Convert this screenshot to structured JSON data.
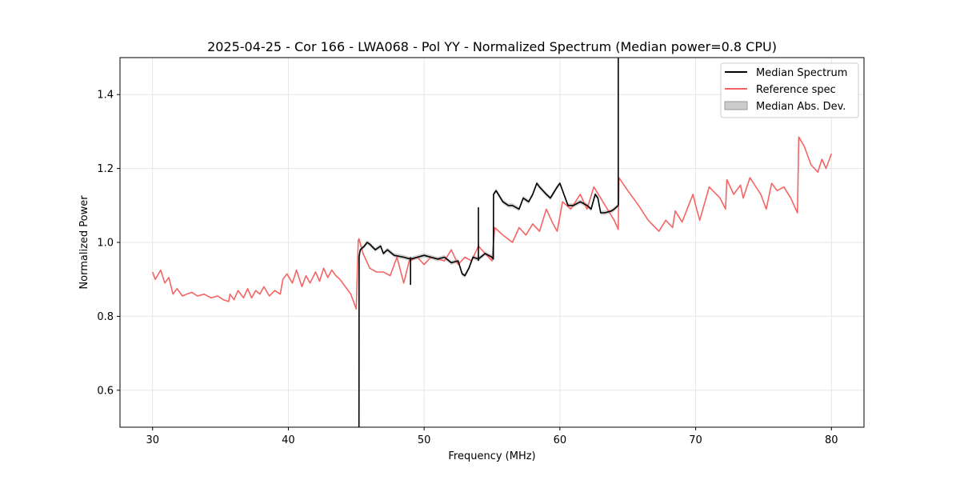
{
  "chart_data": {
    "type": "line",
    "title": "2025-04-25 - Cor 166 - LWA068 - Pol YY - Normalized Spectrum (Median power=0.8 CPU)",
    "xlabel": "Frequency (MHz)",
    "ylabel": "Normalized Power",
    "xlim": [
      27.6,
      82.4
    ],
    "ylim": [
      0.5,
      1.5
    ],
    "xticks": [
      30,
      40,
      50,
      60,
      70,
      80
    ],
    "yticks": [
      0.6,
      0.8,
      1.0,
      1.2,
      1.4
    ],
    "xtick_labels": [
      "30",
      "40",
      "50",
      "60",
      "70",
      "80"
    ],
    "ytick_labels": [
      "0.6",
      "0.8",
      "1.0",
      "1.2",
      "1.4"
    ],
    "grid": true,
    "legend_position": "top-right",
    "series": [
      {
        "name": "Median Spectrum",
        "color": "#000000",
        "x": [
          45.2,
          45.21,
          45.25,
          45.3,
          45.6,
          45.8,
          46.0,
          46.4,
          46.8,
          47.0,
          47.3,
          47.8,
          48.5,
          49.0,
          49.5,
          50.0,
          50.5,
          51.0,
          51.5,
          52.0,
          52.5,
          52.8,
          53.0,
          53.3,
          53.6,
          54.0,
          54.5,
          55.0,
          55.1,
          55.11,
          55.3,
          55.8,
          56.2,
          56.5,
          57.0,
          57.3,
          57.7,
          58.0,
          58.3,
          58.5,
          59.0,
          59.3,
          59.8,
          60.0,
          60.3,
          60.6,
          61.0,
          61.5,
          62.0,
          62.3,
          62.6,
          62.8,
          63.0,
          63.3,
          63.8,
          64.0,
          64.3
        ],
        "y": [
          0.5,
          0.96,
          0.97,
          0.98,
          0.99,
          1.0,
          0.995,
          0.98,
          0.99,
          0.97,
          0.98,
          0.965,
          0.96,
          0.955,
          0.96,
          0.965,
          0.96,
          0.955,
          0.96,
          0.945,
          0.95,
          0.915,
          0.91,
          0.93,
          0.96,
          0.955,
          0.97,
          0.96,
          0.955,
          1.13,
          1.14,
          1.11,
          1.1,
          1.1,
          1.09,
          1.12,
          1.11,
          1.13,
          1.16,
          1.15,
          1.13,
          1.12,
          1.15,
          1.16,
          1.13,
          1.1,
          1.1,
          1.11,
          1.1,
          1.09,
          1.13,
          1.12,
          1.08,
          1.08,
          1.085,
          1.09,
          1.1
        ]
      },
      {
        "name": "Reference spec",
        "color": "#f56464",
        "x": [
          30.0,
          30.2,
          30.6,
          30.9,
          31.2,
          31.5,
          31.8,
          32.2,
          32.5,
          32.9,
          33.3,
          33.8,
          34.3,
          34.8,
          35.2,
          35.6,
          35.7,
          36.0,
          36.3,
          36.7,
          37.0,
          37.3,
          37.6,
          37.9,
          38.2,
          38.6,
          39.0,
          39.4,
          39.6,
          39.9,
          40.3,
          40.6,
          41.0,
          41.3,
          41.6,
          42.0,
          42.3,
          42.6,
          42.9,
          43.2,
          43.5,
          43.8,
          44.2,
          44.6,
          45.0,
          45.15,
          45.2,
          45.5,
          46.0,
          46.5,
          47.0,
          47.5,
          48.0,
          48.5,
          48.9,
          49.5,
          50.0,
          50.5,
          51.0,
          51.5,
          52.0,
          52.5,
          53.0,
          53.5,
          54.0,
          54.5,
          55.0,
          55.2,
          55.8,
          56.5,
          57.0,
          57.5,
          58.0,
          58.5,
          59.0,
          59.5,
          59.8,
          60.2,
          60.8,
          61.5,
          62.0,
          62.5,
          63.0,
          63.5,
          64.0,
          64.3,
          64.35,
          65.0,
          65.8,
          66.5,
          67.3,
          67.8,
          68.3,
          68.5,
          69.0,
          69.8,
          70.0,
          70.3,
          71.0,
          71.8,
          72.2,
          72.3,
          72.8,
          73.3,
          73.5,
          74.0,
          74.8,
          75.2,
          75.6,
          76.0,
          76.5,
          77.0,
          77.5,
          77.6,
          78.0,
          78.5,
          79.0,
          79.3,
          79.6,
          80.0
        ],
        "y": [
          0.92,
          0.9,
          0.925,
          0.89,
          0.905,
          0.86,
          0.875,
          0.855,
          0.86,
          0.865,
          0.855,
          0.86,
          0.85,
          0.855,
          0.845,
          0.84,
          0.86,
          0.845,
          0.87,
          0.85,
          0.875,
          0.85,
          0.87,
          0.86,
          0.88,
          0.855,
          0.87,
          0.86,
          0.9,
          0.915,
          0.89,
          0.925,
          0.88,
          0.91,
          0.89,
          0.92,
          0.895,
          0.93,
          0.905,
          0.925,
          0.91,
          0.9,
          0.88,
          0.86,
          0.82,
          1.005,
          1.01,
          0.97,
          0.93,
          0.92,
          0.92,
          0.91,
          0.96,
          0.89,
          0.95,
          0.96,
          0.94,
          0.96,
          0.955,
          0.95,
          0.98,
          0.94,
          0.96,
          0.95,
          0.99,
          0.97,
          0.95,
          1.04,
          1.02,
          1.0,
          1.04,
          1.02,
          1.05,
          1.03,
          1.09,
          1.05,
          1.03,
          1.11,
          1.09,
          1.13,
          1.09,
          1.15,
          1.12,
          1.09,
          1.06,
          1.035,
          1.175,
          1.14,
          1.1,
          1.06,
          1.03,
          1.06,
          1.04,
          1.085,
          1.055,
          1.13,
          1.1,
          1.06,
          1.15,
          1.12,
          1.09,
          1.17,
          1.13,
          1.155,
          1.12,
          1.175,
          1.13,
          1.09,
          1.16,
          1.14,
          1.15,
          1.12,
          1.08,
          1.285,
          1.26,
          1.21,
          1.19,
          1.225,
          1.2,
          1.24
        ]
      },
      {
        "name": "Median Abs. Dev.",
        "color": "#cccccc"
      }
    ]
  }
}
